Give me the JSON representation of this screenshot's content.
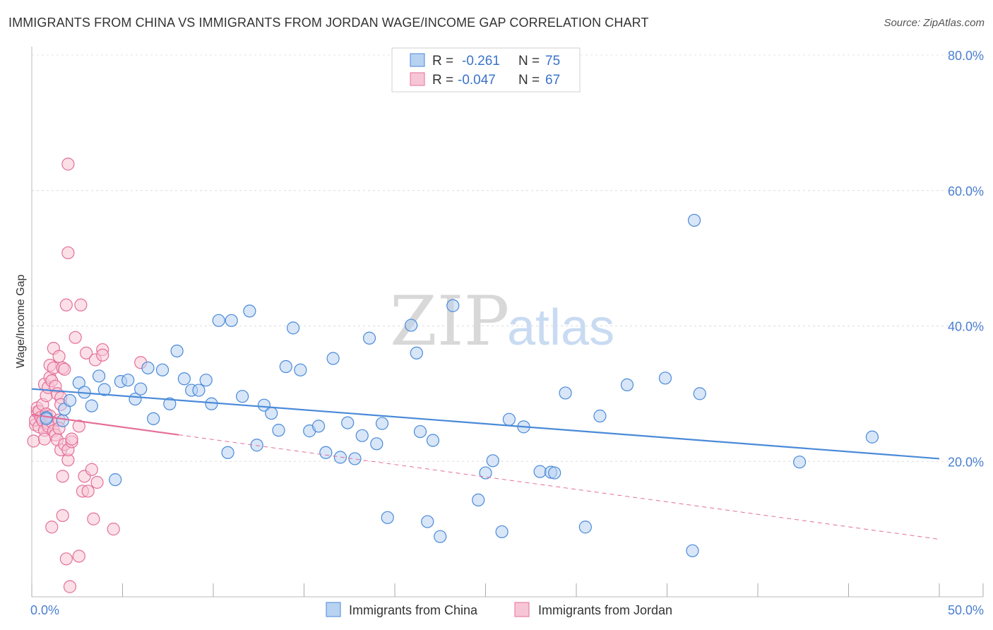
{
  "title": "IMMIGRANTS FROM CHINA VS IMMIGRANTS FROM JORDAN WAGE/INCOME GAP CORRELATION CHART",
  "source": "Source: ZipAtlas.com",
  "watermark": {
    "zip": "ZIP",
    "atlas": "atlas"
  },
  "colors": {
    "china": "#4a8ad8",
    "china_fill": "#b8d2f2",
    "jordan": "#e46f99",
    "jordan_fill": "#f7c6d6",
    "tick": "#4a7fd0"
  },
  "legend": {
    "rows": [
      {
        "series": "china",
        "r_label": "R =",
        "r_value": "-0.261",
        "n_label": "N =",
        "n_value": "75"
      },
      {
        "series": "jordan",
        "r_label": "R =",
        "r_value": "-0.047",
        "n_label": "N =",
        "n_value": "67"
      }
    ]
  },
  "chart_data": {
    "type": "scatter",
    "title": "IMMIGRANTS FROM CHINA VS IMMIGRANTS FROM JORDAN WAGE/INCOME GAP CORRELATION CHART",
    "xlabel": "",
    "ylabel": "Wage/Income Gap",
    "xlim": [
      0,
      50
    ],
    "ylim": [
      0,
      80
    ],
    "x_tick_labels": [
      "0.0%",
      "50.0%"
    ],
    "y_ticks": [
      20,
      40,
      60,
      80
    ],
    "y_tick_labels": [
      "20.0%",
      "40.0%",
      "60.0%",
      "80.0%"
    ],
    "grid": true,
    "series": [
      {
        "name": "Immigrants from China",
        "color": "china",
        "trend": {
          "x0": 0,
          "y0": 30.7,
          "x1": 50,
          "y1": 20.4,
          "solid_to": 50
        },
        "points": [
          [
            0.8,
            26.5
          ],
          [
            0.8,
            26.3
          ],
          [
            1.7,
            26.0
          ],
          [
            1.8,
            27.7
          ],
          [
            2.1,
            29.0
          ],
          [
            2.6,
            31.6
          ],
          [
            2.9,
            30.2
          ],
          [
            3.3,
            28.2
          ],
          [
            3.7,
            32.6
          ],
          [
            4.0,
            30.6
          ],
          [
            4.6,
            17.3
          ],
          [
            4.9,
            31.8
          ],
          [
            5.3,
            32.0
          ],
          [
            5.7,
            29.2
          ],
          [
            6.0,
            30.7
          ],
          [
            6.4,
            33.8
          ],
          [
            6.7,
            26.3
          ],
          [
            7.2,
            33.5
          ],
          [
            7.6,
            28.5
          ],
          [
            8.0,
            36.3
          ],
          [
            8.4,
            32.2
          ],
          [
            8.8,
            30.5
          ],
          [
            9.2,
            30.5
          ],
          [
            9.6,
            32.0
          ],
          [
            9.9,
            28.5
          ],
          [
            10.3,
            40.8
          ],
          [
            10.8,
            21.3
          ],
          [
            11.0,
            40.8
          ],
          [
            11.6,
            29.6
          ],
          [
            12.0,
            42.2
          ],
          [
            12.4,
            22.4
          ],
          [
            12.8,
            28.3
          ],
          [
            13.2,
            27.1
          ],
          [
            13.6,
            24.6
          ],
          [
            14.0,
            34.0
          ],
          [
            14.4,
            39.7
          ],
          [
            14.8,
            33.5
          ],
          [
            15.3,
            24.5
          ],
          [
            15.8,
            25.2
          ],
          [
            16.2,
            21.3
          ],
          [
            16.6,
            35.2
          ],
          [
            17.0,
            20.6
          ],
          [
            17.4,
            25.7
          ],
          [
            17.8,
            20.4
          ],
          [
            18.2,
            23.8
          ],
          [
            18.6,
            38.2
          ],
          [
            19.0,
            22.6
          ],
          [
            19.3,
            25.6
          ],
          [
            19.6,
            11.7
          ],
          [
            20.9,
            40.1
          ],
          [
            21.2,
            36.0
          ],
          [
            21.4,
            24.4
          ],
          [
            21.8,
            11.1
          ],
          [
            22.1,
            23.1
          ],
          [
            22.5,
            8.9
          ],
          [
            23.2,
            43.0
          ],
          [
            24.6,
            14.3
          ],
          [
            25.0,
            18.3
          ],
          [
            25.4,
            20.1
          ],
          [
            25.9,
            9.6
          ],
          [
            26.3,
            26.2
          ],
          [
            27.1,
            25.1
          ],
          [
            28.0,
            18.5
          ],
          [
            28.6,
            18.4
          ],
          [
            28.8,
            18.3
          ],
          [
            29.4,
            30.1
          ],
          [
            30.5,
            10.3
          ],
          [
            31.3,
            26.7
          ],
          [
            32.8,
            31.3
          ],
          [
            34.9,
            32.3
          ],
          [
            36.4,
            6.8
          ],
          [
            36.5,
            55.6
          ],
          [
            36.8,
            30.0
          ],
          [
            42.3,
            19.9
          ],
          [
            46.3,
            23.6
          ]
        ]
      },
      {
        "name": "Immigrants from Jordan",
        "color": "jordan",
        "trend": {
          "x0": 0,
          "y0": 26.9,
          "x1": 50,
          "y1": 8.5,
          "solid_to": 8.1
        },
        "points": [
          [
            0.1,
            23.0
          ],
          [
            0.2,
            25.4
          ],
          [
            0.2,
            26.1
          ],
          [
            0.3,
            27.3
          ],
          [
            0.3,
            27.9
          ],
          [
            0.4,
            25.1
          ],
          [
            0.4,
            27.4
          ],
          [
            0.5,
            26.5
          ],
          [
            0.6,
            28.4
          ],
          [
            0.6,
            26.0
          ],
          [
            0.7,
            24.6
          ],
          [
            0.7,
            23.3
          ],
          [
            0.7,
            31.4
          ],
          [
            0.8,
            27.0
          ],
          [
            0.8,
            29.7
          ],
          [
            0.9,
            25.6
          ],
          [
            0.9,
            25.2
          ],
          [
            0.9,
            30.9
          ],
          [
            1.0,
            34.2
          ],
          [
            1.0,
            32.4
          ],
          [
            1.0,
            26.7
          ],
          [
            1.1,
            31.9
          ],
          [
            1.1,
            10.3
          ],
          [
            1.1,
            25.8
          ],
          [
            1.2,
            36.7
          ],
          [
            1.2,
            24.5
          ],
          [
            1.2,
            33.8
          ],
          [
            1.3,
            23.9
          ],
          [
            1.3,
            31.1
          ],
          [
            1.4,
            23.2
          ],
          [
            1.4,
            30.0
          ],
          [
            1.5,
            35.5
          ],
          [
            1.5,
            26.1
          ],
          [
            1.5,
            24.9
          ],
          [
            1.6,
            29.4
          ],
          [
            1.6,
            28.4
          ],
          [
            1.6,
            21.7
          ],
          [
            1.7,
            33.8
          ],
          [
            1.7,
            17.8
          ],
          [
            1.7,
            12.0
          ],
          [
            1.8,
            22.5
          ],
          [
            1.8,
            33.6
          ],
          [
            1.9,
            5.6
          ],
          [
            1.9,
            43.1
          ],
          [
            2.0,
            50.8
          ],
          [
            2.0,
            63.9
          ],
          [
            2.0,
            20.2
          ],
          [
            2.0,
            21.7
          ],
          [
            2.1,
            1.5
          ],
          [
            2.2,
            22.9
          ],
          [
            2.2,
            23.3
          ],
          [
            2.4,
            38.3
          ],
          [
            2.6,
            25.2
          ],
          [
            2.6,
            6.0
          ],
          [
            2.7,
            43.1
          ],
          [
            2.8,
            15.6
          ],
          [
            2.9,
            17.8
          ],
          [
            3.0,
            36.0
          ],
          [
            3.1,
            15.6
          ],
          [
            3.3,
            18.8
          ],
          [
            3.4,
            11.5
          ],
          [
            3.5,
            35.0
          ],
          [
            3.6,
            16.9
          ],
          [
            3.9,
            36.5
          ],
          [
            3.9,
            35.7
          ],
          [
            4.5,
            10.0
          ],
          [
            6.0,
            34.6
          ]
        ]
      }
    ]
  },
  "bottom_legend": [
    {
      "series": "china",
      "label": "Immigrants from China"
    },
    {
      "series": "jordan",
      "label": "Immigrants from Jordan"
    }
  ]
}
